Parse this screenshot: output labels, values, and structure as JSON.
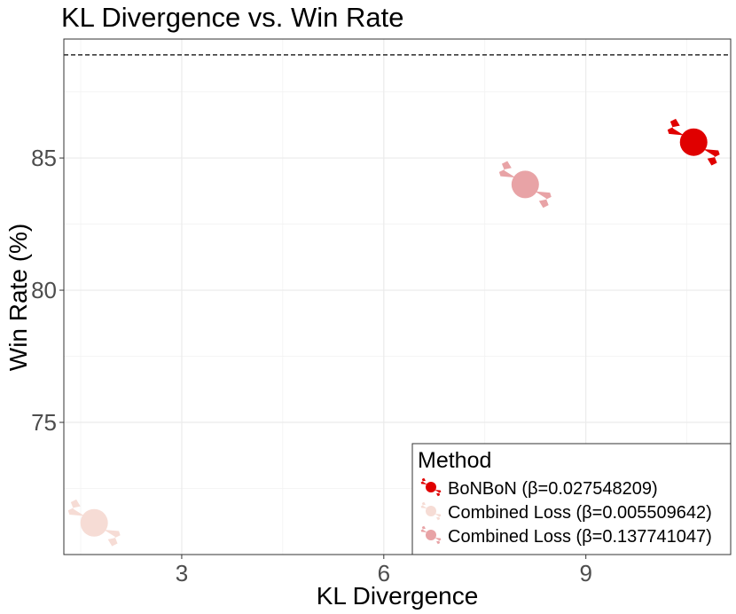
{
  "chart_data": {
    "type": "scatter",
    "title": "KL Divergence vs. Win Rate",
    "xlabel": "KL Divergence",
    "ylabel": "Win Rate (%)",
    "xlim": [
      1.25,
      11.15
    ],
    "ylim": [
      70.0,
      89.5
    ],
    "xticks": [
      3,
      6,
      9
    ],
    "yticks": [
      75,
      80,
      85
    ],
    "grid": true,
    "reference_line": {
      "y": 88.9,
      "style": "dashed"
    },
    "legend": {
      "title": "Method",
      "position": "bottom-right"
    },
    "series": [
      {
        "name": "BoNBoN (β=0.027548209)",
        "color": "#e00000",
        "x": [
          10.6
        ],
        "y": [
          85.6
        ]
      },
      {
        "name": "Combined Loss (β=0.005509642)",
        "color": "#f6dcd5",
        "x": [
          1.7
        ],
        "y": [
          71.2
        ]
      },
      {
        "name": "Combined Loss (β=0.137741047)",
        "color": "#e8a3a6",
        "x": [
          8.1
        ],
        "y": [
          84.0
        ]
      }
    ]
  }
}
